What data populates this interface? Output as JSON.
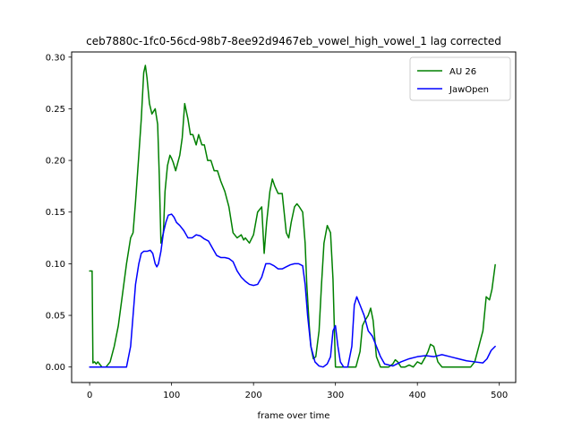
{
  "chart_data": {
    "type": "line",
    "title": "ceb7880c-1fc0-56cd-98b7-8ee92d9467eb_vowel_high_vowel_1  lag corrected",
    "xlabel": "frame over time",
    "ylabel": "",
    "xlim": [
      -22,
      520
    ],
    "ylim": [
      -0.015,
      0.305
    ],
    "xticks": [
      0,
      100,
      200,
      300,
      400,
      500
    ],
    "yticks": [
      0.0,
      0.05,
      0.1,
      0.15,
      0.2,
      0.25,
      0.3
    ],
    "xtick_labels": [
      "0",
      "100",
      "200",
      "300",
      "400",
      "500"
    ],
    "ytick_labels": [
      "0.00",
      "0.05",
      "0.10",
      "0.15",
      "0.20",
      "0.25",
      "0.30"
    ],
    "legend_position": "top-right",
    "grid": false,
    "series": [
      {
        "name": "AU 26",
        "color": "#008000",
        "x": [
          0,
          3,
          4,
          6,
          8,
          10,
          12,
          15,
          20,
          25,
          30,
          35,
          40,
          45,
          50,
          53,
          56,
          60,
          63,
          66,
          68,
          70,
          73,
          76,
          80,
          83,
          85,
          87,
          90,
          92,
          95,
          98,
          100,
          102,
          105,
          110,
          113,
          116,
          120,
          123,
          126,
          130,
          133,
          137,
          140,
          144,
          148,
          152,
          156,
          160,
          165,
          170,
          175,
          180,
          185,
          188,
          190,
          195,
          200,
          205,
          210,
          213,
          216,
          220,
          223,
          226,
          230,
          235,
          240,
          243,
          246,
          250,
          253,
          256,
          260,
          263,
          265,
          268,
          270,
          273,
          276,
          280,
          283,
          286,
          290,
          294,
          297,
          300,
          302,
          305,
          308,
          310,
          315,
          320,
          325,
          330,
          333,
          336,
          340,
          343,
          346,
          350,
          355,
          360,
          365,
          370,
          373,
          376,
          380,
          385,
          390,
          395,
          400,
          405,
          410,
          413,
          416,
          420,
          425,
          430,
          440,
          450,
          460,
          465,
          470,
          475,
          480,
          484,
          488,
          491,
          495
        ],
        "y": [
          0.093,
          0.093,
          0.004,
          0.005,
          0.003,
          0.005,
          0.003,
          0.0,
          0.0,
          0.005,
          0.02,
          0.04,
          0.07,
          0.1,
          0.125,
          0.13,
          0.16,
          0.205,
          0.24,
          0.285,
          0.292,
          0.28,
          0.255,
          0.245,
          0.25,
          0.235,
          0.185,
          0.12,
          0.13,
          0.17,
          0.195,
          0.205,
          0.202,
          0.198,
          0.19,
          0.205,
          0.222,
          0.255,
          0.24,
          0.225,
          0.225,
          0.215,
          0.225,
          0.215,
          0.215,
          0.2,
          0.2,
          0.19,
          0.19,
          0.18,
          0.17,
          0.155,
          0.13,
          0.125,
          0.128,
          0.123,
          0.125,
          0.12,
          0.128,
          0.15,
          0.155,
          0.11,
          0.14,
          0.17,
          0.182,
          0.175,
          0.168,
          0.168,
          0.13,
          0.125,
          0.14,
          0.155,
          0.158,
          0.155,
          0.15,
          0.12,
          0.08,
          0.04,
          0.02,
          0.008,
          0.01,
          0.035,
          0.08,
          0.12,
          0.137,
          0.13,
          0.085,
          0.0,
          0.0,
          0.0,
          0.0,
          0.0,
          0.0,
          0.0,
          0.0,
          0.015,
          0.04,
          0.045,
          0.05,
          0.057,
          0.045,
          0.01,
          0.0,
          0.0,
          0.0,
          0.003,
          0.007,
          0.005,
          0.0,
          0.0,
          0.002,
          0.0,
          0.005,
          0.003,
          0.01,
          0.015,
          0.022,
          0.02,
          0.005,
          0.0,
          0.0,
          0.0,
          0.0,
          0.0,
          0.005,
          0.02,
          0.035,
          0.068,
          0.065,
          0.075,
          0.099
        ]
      },
      {
        "name": "JawOpen",
        "color": "#0000ff",
        "x": [
          0,
          10,
          20,
          30,
          40,
          45,
          50,
          53,
          56,
          60,
          63,
          66,
          70,
          74,
          77,
          80,
          82,
          84,
          87,
          90,
          93,
          96,
          100,
          103,
          106,
          110,
          115,
          120,
          125,
          130,
          135,
          140,
          145,
          150,
          155,
          160,
          165,
          170,
          175,
          180,
          185,
          190,
          195,
          200,
          205,
          210,
          215,
          220,
          225,
          230,
          235,
          240,
          245,
          250,
          255,
          260,
          263,
          266,
          270,
          275,
          280,
          285,
          290,
          294,
          297,
          300,
          303,
          306,
          310,
          315,
          320,
          323,
          326,
          330,
          335,
          340,
          345,
          350,
          355,
          360,
          370,
          380,
          390,
          400,
          410,
          420,
          430,
          440,
          450,
          460,
          470,
          480,
          485,
          490,
          495
        ],
        "y": [
          0.0,
          0.0,
          0.0,
          0.0,
          0.0,
          0.0,
          0.02,
          0.05,
          0.08,
          0.1,
          0.11,
          0.112,
          0.112,
          0.113,
          0.11,
          0.1,
          0.097,
          0.1,
          0.112,
          0.13,
          0.14,
          0.147,
          0.148,
          0.145,
          0.14,
          0.137,
          0.132,
          0.125,
          0.125,
          0.128,
          0.127,
          0.124,
          0.122,
          0.115,
          0.108,
          0.106,
          0.106,
          0.105,
          0.102,
          0.093,
          0.087,
          0.083,
          0.08,
          0.079,
          0.08,
          0.087,
          0.1,
          0.1,
          0.098,
          0.095,
          0.095,
          0.097,
          0.099,
          0.1,
          0.1,
          0.098,
          0.08,
          0.05,
          0.02,
          0.005,
          0.001,
          0.0,
          0.003,
          0.01,
          0.035,
          0.04,
          0.02,
          0.005,
          0.0,
          0.0,
          0.02,
          0.06,
          0.068,
          0.06,
          0.05,
          0.035,
          0.03,
          0.02,
          0.01,
          0.003,
          0.001,
          0.005,
          0.008,
          0.01,
          0.011,
          0.01,
          0.012,
          0.01,
          0.008,
          0.006,
          0.005,
          0.004,
          0.008,
          0.016,
          0.02
        ]
      }
    ]
  }
}
